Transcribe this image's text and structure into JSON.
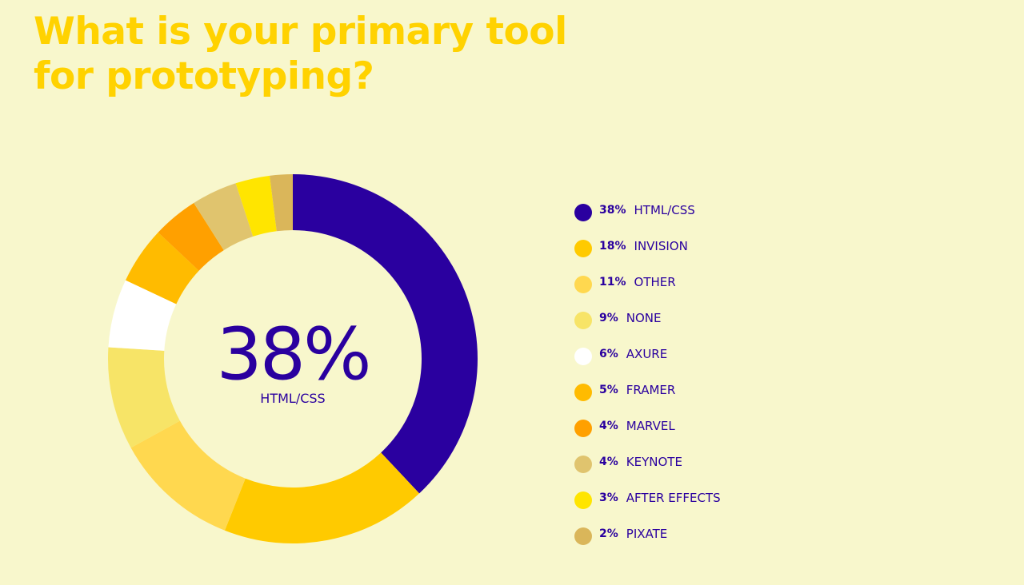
{
  "title": "What is your primary tool for prototyping?",
  "center": {
    "value": "38%",
    "label": "HTML/CSS"
  },
  "chart_data": {
    "type": "pie",
    "title": "What is your primary tool for prototyping?",
    "series": [
      {
        "pct_label": "38%",
        "label": "HTML/CSS",
        "value": 38,
        "color": "#2a009f"
      },
      {
        "pct_label": "18%",
        "label": "INVISION",
        "value": 18,
        "color": "#ffca00"
      },
      {
        "pct_label": "11%",
        "label": "OTHER",
        "value": 11,
        "color": "#ffd84f"
      },
      {
        "pct_label": "9%",
        "label": "NONE",
        "value": 9,
        "color": "#f7e467"
      },
      {
        "pct_label": "6%",
        "label": "AXURE",
        "value": 6,
        "color": "#ffffff"
      },
      {
        "pct_label": "5%",
        "label": "FRAMER",
        "value": 5,
        "color": "#ffbb00"
      },
      {
        "pct_label": "4%",
        "label": "MARVEL",
        "value": 4,
        "color": "#ffa000"
      },
      {
        "pct_label": "4%",
        "label": "KEYNOTE",
        "value": 4,
        "color": "#e0c46e"
      },
      {
        "pct_label": "3%",
        "label": "AFTER EFFECTS",
        "value": 3,
        "color": "#ffe500"
      },
      {
        "pct_label": "2%",
        "label": "PIXATE",
        "value": 2,
        "color": "#dab65a"
      }
    ],
    "legend_position": "right",
    "center_text_color": "#2a009f"
  }
}
